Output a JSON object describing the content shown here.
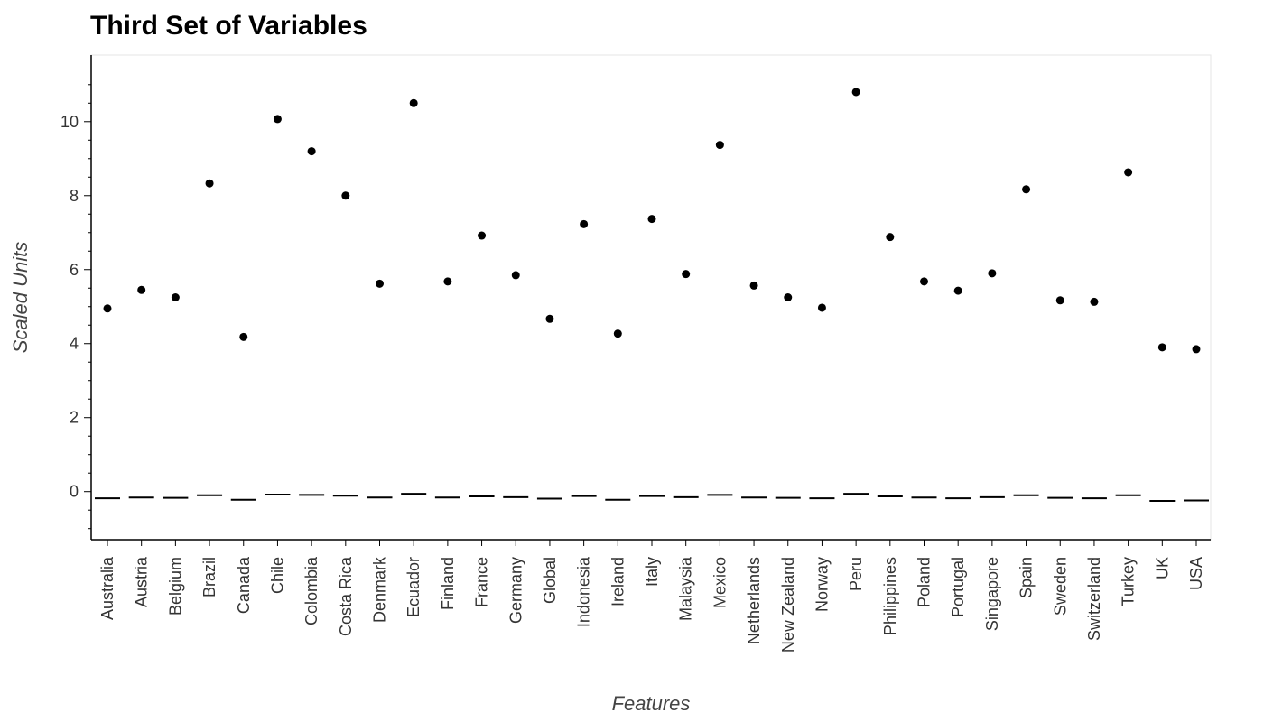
{
  "chart_data": {
    "type": "scatter",
    "title": "Third Set of Variables",
    "xlabel": "Features",
    "ylabel": "Scaled Units",
    "ylim": [
      -1.3,
      11.8
    ],
    "yticks": [
      0,
      2,
      4,
      6,
      8,
      10
    ],
    "grid": false,
    "categories": [
      "Australia",
      "Austria",
      "Belgium",
      "Brazil",
      "Canada",
      "Chile",
      "Colombia",
      "Costa Rica",
      "Denmark",
      "Ecuador",
      "Finland",
      "France",
      "Germany",
      "Global",
      "Indonesia",
      "Ireland",
      "Italy",
      "Malaysia",
      "Mexico",
      "Netherlands",
      "New Zealand",
      "Norway",
      "Peru",
      "Philippines",
      "Poland",
      "Portugal",
      "Singapore",
      "Spain",
      "Sweden",
      "Switzerland",
      "Turkey",
      "UK",
      "USA"
    ],
    "series": [
      {
        "marker": "circle",
        "values": [
          4.95,
          5.45,
          5.25,
          8.33,
          4.18,
          10.07,
          9.2,
          8.0,
          5.62,
          10.5,
          5.68,
          6.92,
          5.85,
          4.67,
          7.23,
          4.27,
          7.37,
          5.88,
          9.37,
          5.57,
          5.25,
          4.97,
          10.8,
          6.88,
          5.68,
          5.43,
          5.9,
          8.17,
          5.17,
          5.13,
          8.63,
          3.9,
          3.85
        ]
      },
      {
        "marker": "dash",
        "values": [
          -0.18,
          -0.16,
          -0.17,
          -0.1,
          -0.22,
          -0.08,
          -0.09,
          -0.11,
          -0.16,
          -0.06,
          -0.16,
          -0.13,
          -0.15,
          -0.19,
          -0.12,
          -0.22,
          -0.12,
          -0.15,
          -0.09,
          -0.16,
          -0.17,
          -0.18,
          -0.06,
          -0.13,
          -0.16,
          -0.18,
          -0.15,
          -0.1,
          -0.17,
          -0.18,
          -0.1,
          -0.25,
          -0.24
        ]
      }
    ],
    "colors": {
      "points": "#000000",
      "axis": "#000000",
      "frame": "#e5e5e5"
    }
  }
}
